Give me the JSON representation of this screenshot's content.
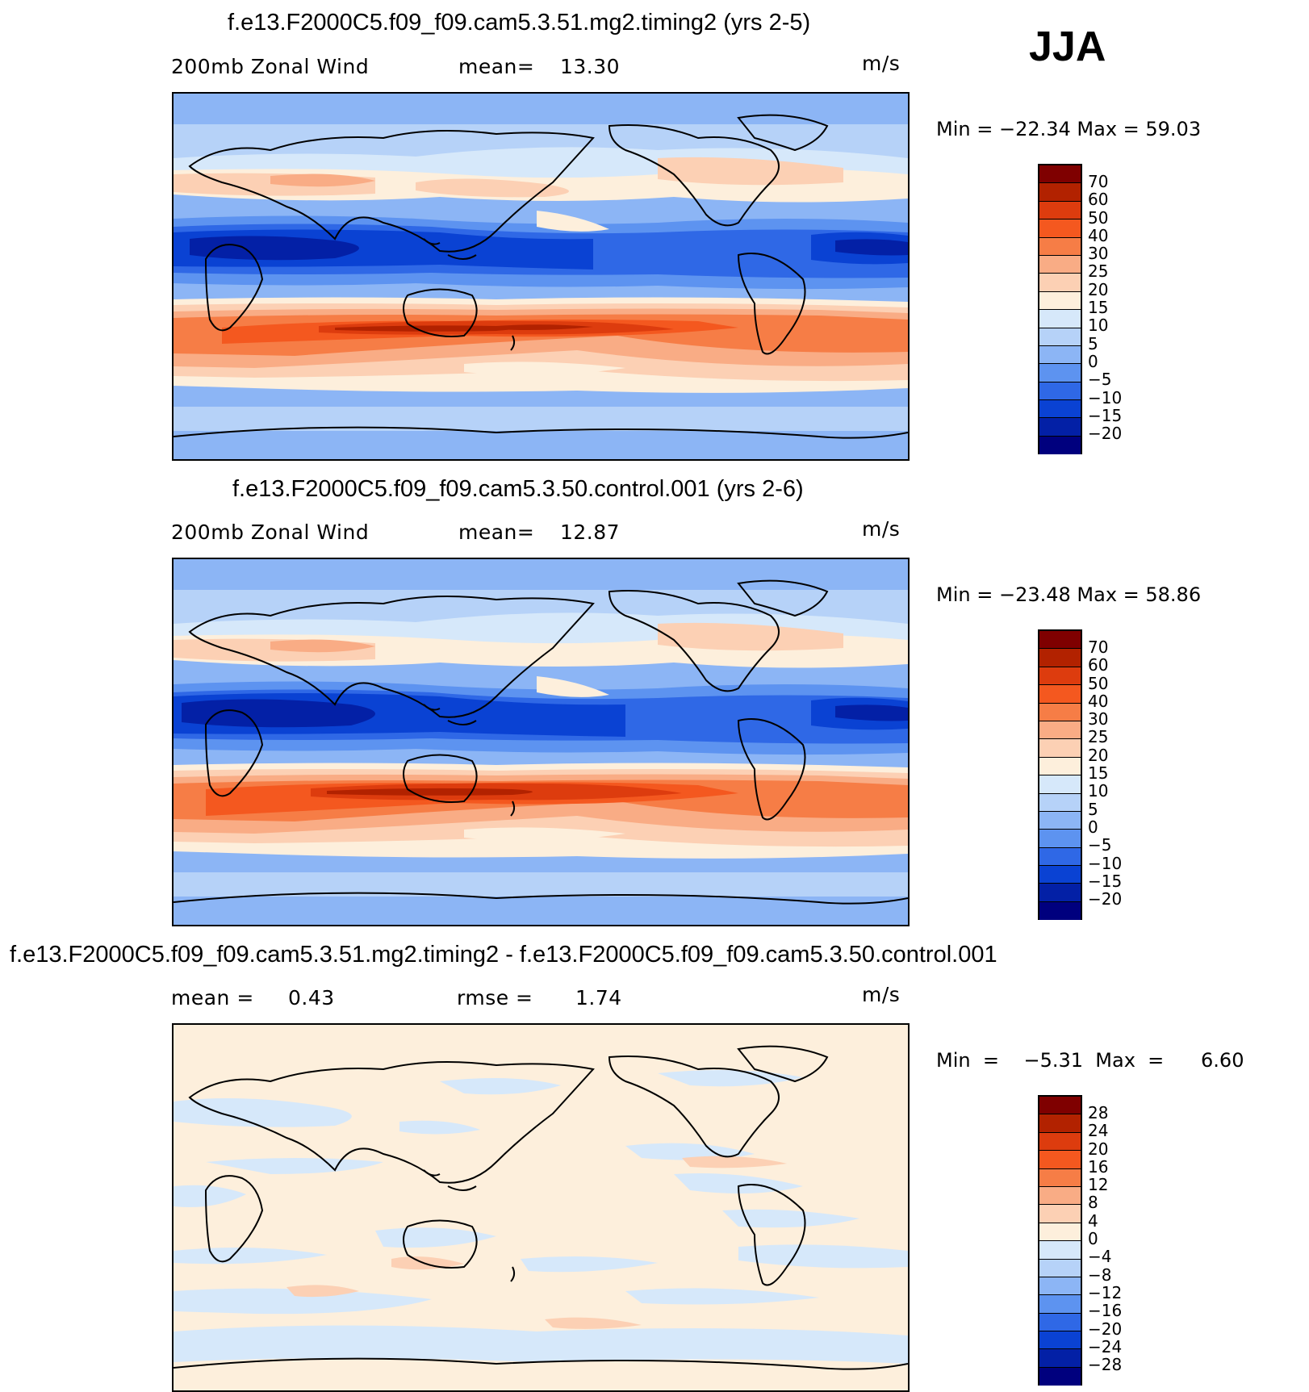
{
  "season": "JJA",
  "panels": [
    {
      "title": "f.e13.F2000C5.f09_f09.cam5.3.51.mg2.timing2 (yrs 2-5)",
      "left_label": "200mb Zonal Wind",
      "stat_label": "mean=",
      "stat_value": "13.30",
      "units": "m/s",
      "minmax": "Min  =  −22.34  Max  =     59.03",
      "colorbar_labels": [
        "70",
        "60",
        "50",
        "40",
        "30",
        "25",
        "20",
        "15",
        "10",
        "5",
        "0",
        "−5",
        "−10",
        "−15",
        "−20"
      ]
    },
    {
      "title": "f.e13.F2000C5.f09_f09.cam5.3.50.control.001 (yrs 2-6)",
      "left_label": "200mb Zonal Wind",
      "stat_label": "mean=",
      "stat_value": "12.87",
      "units": "m/s",
      "minmax": "Min  =  −23.48  Max  =     58.86",
      "colorbar_labels": [
        "70",
        "60",
        "50",
        "40",
        "30",
        "25",
        "20",
        "15",
        "10",
        "5",
        "0",
        "−5",
        "−10",
        "−15",
        "−20"
      ]
    },
    {
      "title": "f.e13.F2000C5.f09_f09.cam5.3.51.mg2.timing2 - f.e13.F2000C5.f09_f09.cam5.3.50.control.001",
      "left_label": "mean =     0.43",
      "stat_label": "rmse =",
      "stat_value": "1.74",
      "units": "m/s",
      "minmax": "Min  =    −5.31  Max  =      6.60",
      "colorbar_labels": [
        "28",
        "24",
        "20",
        "16",
        "12",
        "8",
        "4",
        "0",
        "−4",
        "−8",
        "−12",
        "−16",
        "−20",
        "−24",
        "−28"
      ]
    }
  ],
  "colors": {
    "scale": [
      "#7f0000",
      "#b22200",
      "#dd3c0e",
      "#f4581f",
      "#f67d46",
      "#f9ac85",
      "#fcd0b4",
      "#fdefdc",
      "#d6e8fa",
      "#b6d2f8",
      "#8cb5f5",
      "#5d93f0",
      "#2f68e6",
      "#0a42d3",
      "#0320a6",
      "#00007e"
    ],
    "coast": "#000000"
  }
}
